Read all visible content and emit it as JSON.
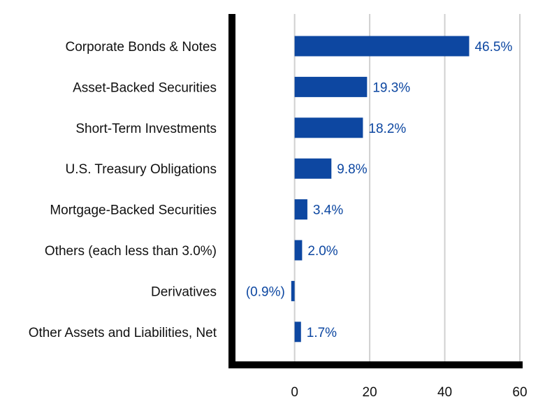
{
  "chart_data": {
    "type": "bar",
    "orientation": "horizontal",
    "title": "",
    "xlabel": "",
    "ylabel": "",
    "categories": [
      "Corporate Bonds & Notes",
      "Asset-Backed Securities",
      "Short-Term Investments",
      "U.S. Treasury Obligations",
      "Mortgage-Backed Securities",
      "Others (each less than 3.0%)",
      "Derivatives",
      "Other Assets and Liabilities, Net"
    ],
    "values": [
      46.5,
      19.3,
      18.2,
      9.8,
      3.4,
      2.0,
      -0.9,
      1.7
    ],
    "data_labels": [
      "46.5%",
      "19.3%",
      "18.2%",
      "9.8%",
      "3.4%",
      "2.0%",
      "(0.9%)",
      "1.7%"
    ],
    "xlim": [
      -16.5,
      60
    ],
    "xticks": [
      0,
      20,
      40,
      60
    ],
    "xtick_labels": [
      "0",
      "20",
      "40",
      "60"
    ],
    "grid": true,
    "legend": "none",
    "colors": {
      "bar": "#0d47a1",
      "label": "#0d47a1",
      "axis": "#000000",
      "grid": "#d0d0d0"
    }
  }
}
